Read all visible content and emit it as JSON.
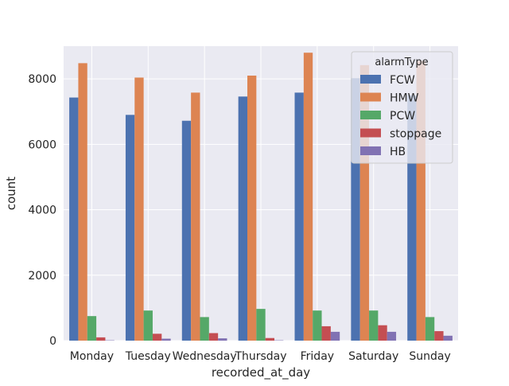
{
  "chart_data": {
    "type": "bar",
    "xlabel": "recorded_at_day",
    "ylabel": "count",
    "ylim": [
      0,
      9000
    ],
    "y_ticks": [
      0,
      2000,
      4000,
      6000,
      8000
    ],
    "grid": true,
    "legend_position": "top-right",
    "legend_title": "alarmType",
    "categories": [
      "Monday",
      "Tuesday",
      "Wednesday",
      "Thursday",
      "Friday",
      "Saturday",
      "Sunday"
    ],
    "series": [
      {
        "name": "FCW",
        "color": "#4C72B0",
        "values": [
          7430,
          6900,
          6720,
          7460,
          7580,
          8020,
          7500
        ]
      },
      {
        "name": "HMW",
        "color": "#DD8452",
        "values": [
          8480,
          8040,
          7580,
          8100,
          8800,
          8420,
          8550
        ]
      },
      {
        "name": "PCW",
        "color": "#55A868",
        "values": [
          750,
          920,
          720,
          970,
          920,
          920,
          720
        ]
      },
      {
        "name": "stoppage",
        "color": "#C44E52",
        "values": [
          100,
          210,
          230,
          80,
          440,
          470,
          290
        ]
      },
      {
        "name": "HB",
        "color": "#8172B3",
        "values": [
          10,
          60,
          70,
          10,
          270,
          270,
          150
        ]
      }
    ]
  }
}
